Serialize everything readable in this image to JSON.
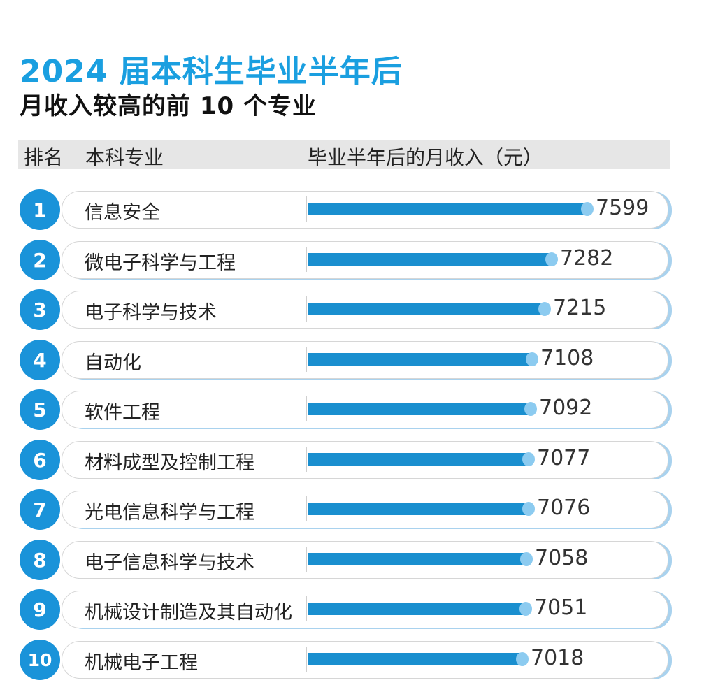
{
  "title": "2024 届本科生毕业半年后",
  "subtitle": "月收入较高的前 10 个专业",
  "header": {
    "rank": "排名",
    "major": "本科专业",
    "income": "毕业半年后的月收入（元）"
  },
  "chart_data": {
    "type": "bar",
    "orientation": "horizontal",
    "title": "2024 届本科生毕业半年后",
    "subtitle": "月收入较高的前 10 个专业",
    "ranks": [
      "1",
      "2",
      "3",
      "4",
      "5",
      "6",
      "7",
      "8",
      "9",
      "10"
    ],
    "categories": [
      "信息安全",
      "微电子科学与工程",
      "电子科学与技术",
      "自动化",
      "软件工程",
      "材料成型及控制工程",
      "光电信息科学与工程",
      "电子信息科学与技术",
      "机械设计制造及其自动化",
      "机械电子工程"
    ],
    "values": [
      7599,
      7282,
      7215,
      7108,
      7092,
      7077,
      7076,
      7058,
      7051,
      7018
    ],
    "value_labels": [
      "7599",
      "7282",
      "7215",
      "7108",
      "7092",
      "7077",
      "7076",
      "7058",
      "7051",
      "7018"
    ],
    "colors": {
      "title": "#1a9fe0",
      "bar": "#1a8fcf",
      "rank_circle": "#1a93d9"
    }
  }
}
